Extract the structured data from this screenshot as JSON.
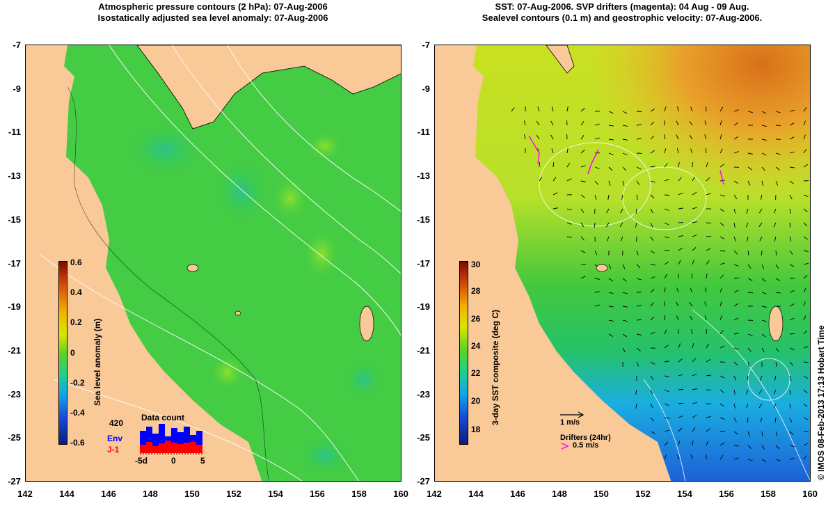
{
  "left_map": {
    "title_line1": "Atmospheric pressure contours (2 hPa): 07-Aug-2006",
    "title_line2": "Isostatically adjusted sea level anomaly: 07-Aug-2006",
    "colorbar": {
      "label": "Sea level anomaly (m)",
      "ticks": [
        "0.6",
        "0.4",
        "0.2",
        "0",
        "-0.2",
        "-0.4",
        "-0.6"
      ],
      "range": [
        -0.6,
        0.6
      ]
    },
    "data_count": {
      "title": "Data count",
      "max_label": "420",
      "env_label": "Env",
      "j1_label": "J-1",
      "x_ticks": [
        "-5d",
        "0",
        "5"
      ],
      "env_color": "#0000ff",
      "j1_color": "#ff0000"
    }
  },
  "right_map": {
    "title_line1": "SST: 07-Aug-2006. SVP drifters (magenta): 04 Aug - 09 Aug.",
    "title_line2": "Sealevel contours (0.1 m) and geostrophic velocity: 07-Aug-2006.",
    "colorbar": {
      "label": "3-day SST composite (deg C)",
      "ticks": [
        "30",
        "28",
        "26",
        "24",
        "22",
        "20",
        "18"
      ],
      "range": [
        17,
        30.5
      ]
    },
    "velocity_scale_label": "1 m/s",
    "drifters_label": "Drifters (24hr)",
    "drifters_speed_label": "0.5 m/s",
    "drifter_color": "#ff00ff"
  },
  "axes": {
    "lon_ticks": [
      "142",
      "144",
      "146",
      "148",
      "150",
      "152",
      "154",
      "156",
      "158",
      "160"
    ],
    "lat_ticks": [
      "-7",
      "-9",
      "-11",
      "-13",
      "-15",
      "-17",
      "-19",
      "-21",
      "-23",
      "-25",
      "-27"
    ]
  },
  "colors": {
    "land": "#f9c998",
    "sea_green": "#3ccf3c"
  },
  "copyright": "© IMOS 08-Feb-2013 17:13 Hobart Time"
}
